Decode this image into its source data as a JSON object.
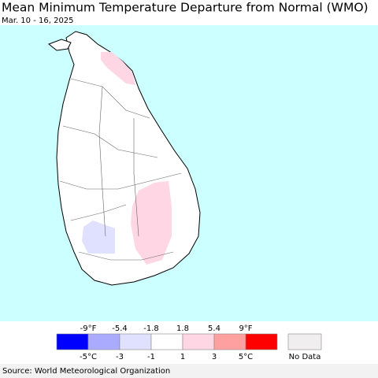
{
  "header": {
    "title": "Mean Minimum Temperature Departure from Normal (WMO)",
    "subtitle": "Mar. 10 - 16, 2025"
  },
  "legend": {
    "top_labels": [
      "-9°F",
      "-5.4",
      "-1.8",
      "1.8",
      "5.4",
      "9°F"
    ],
    "bottom_labels": [
      "-5°C",
      "-3",
      "-1",
      "1",
      "3",
      "5°C"
    ],
    "colors": [
      "#0000ff",
      "#aaaaff",
      "#e0e0ff",
      "#ffffff",
      "#ffd6e4",
      "#ffa0a0",
      "#ff0000"
    ],
    "no_data_label": "No Data",
    "no_data_color": "#f0eeee"
  },
  "footer": {
    "source": "Source: World Meteorological Organization"
  }
}
